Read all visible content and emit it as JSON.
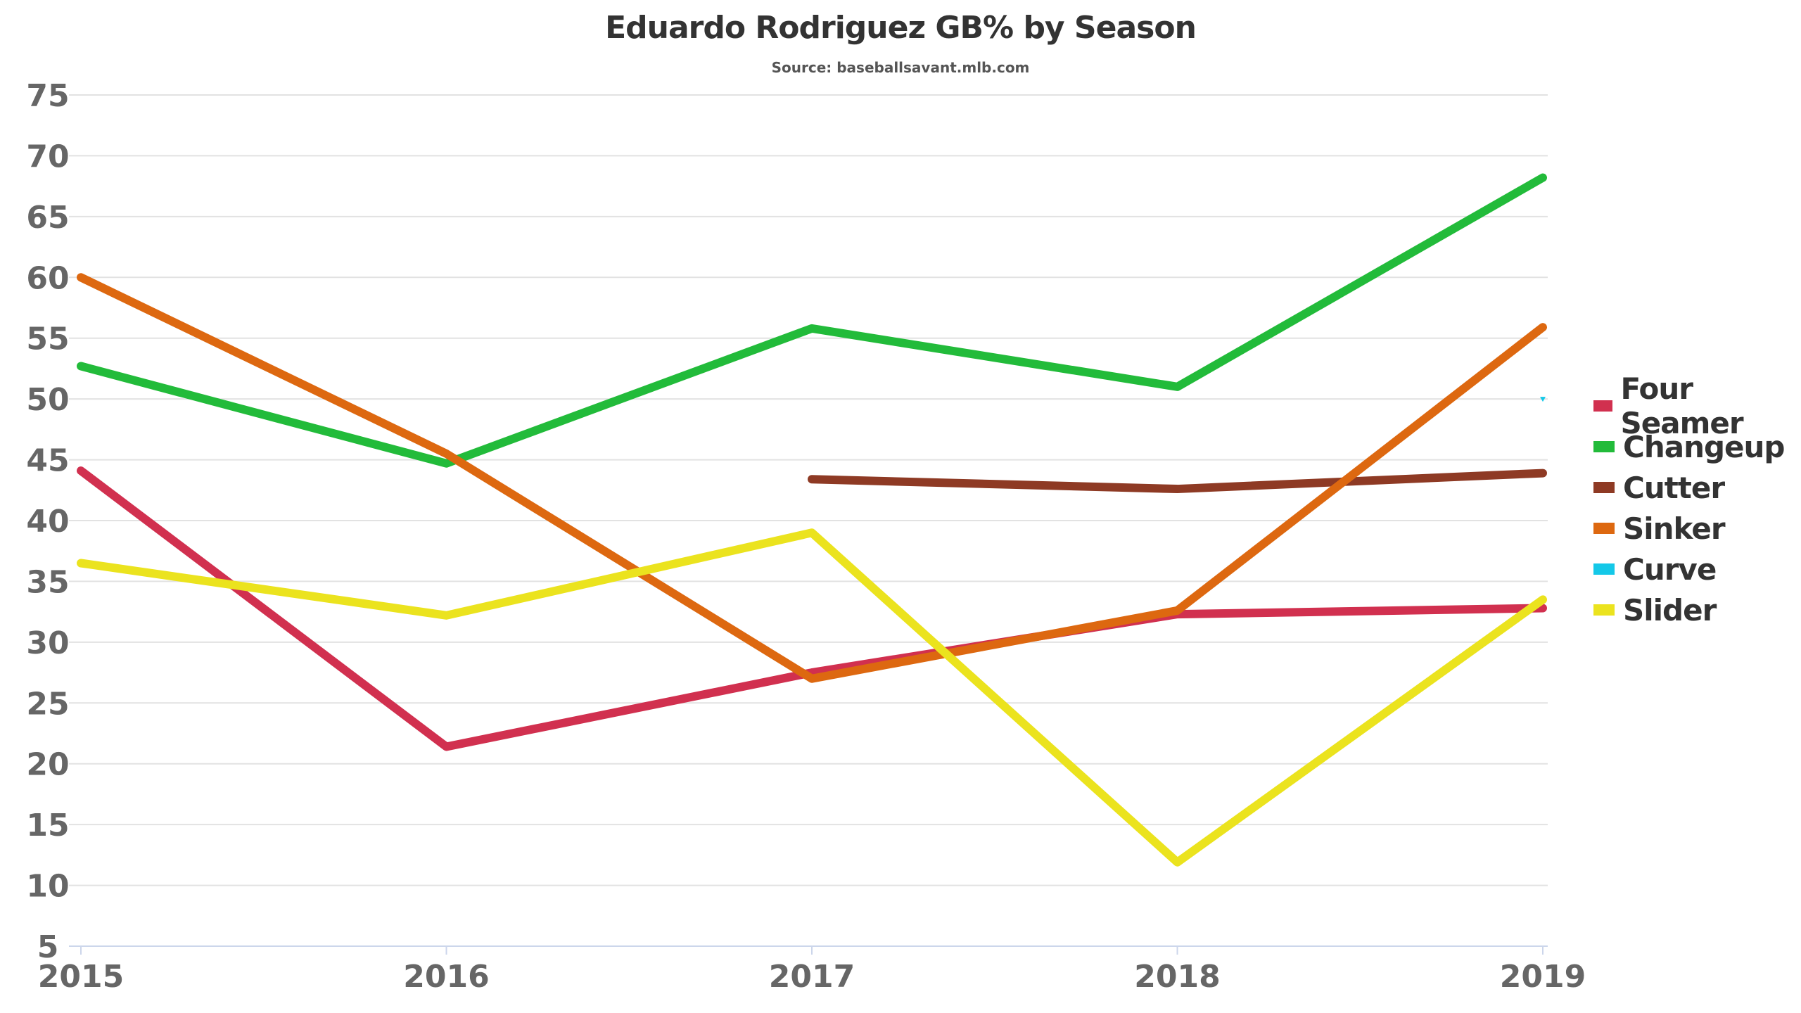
{
  "chart_data": {
    "type": "line",
    "title": "Eduardo Rodriguez GB% by Season",
    "subtitle": "Source: baseballsavant.mlb.com",
    "xlabel": "",
    "ylabel": "",
    "x": [
      "2015",
      "2016",
      "2017",
      "2018",
      "2019"
    ],
    "ylim": [
      5,
      75
    ],
    "yticks": [
      5,
      10,
      15,
      20,
      25,
      30,
      35,
      40,
      45,
      50,
      55,
      60,
      65,
      70,
      75
    ],
    "grid": true,
    "legend_position": "right",
    "series": [
      {
        "name": "Four Seamer",
        "color": "#d1304f",
        "values": [
          44.1,
          21.4,
          27.5,
          32.3,
          32.8
        ]
      },
      {
        "name": "Changeup",
        "color": "#22bb3a",
        "values": [
          52.7,
          44.7,
          55.8,
          51.0,
          68.2
        ]
      },
      {
        "name": "Cutter",
        "color": "#8e3a24",
        "values": [
          null,
          null,
          43.4,
          42.6,
          43.9
        ]
      },
      {
        "name": "Sinker",
        "color": "#dd6810",
        "values": [
          60.0,
          45.5,
          27.0,
          32.6,
          55.9
        ]
      },
      {
        "name": "Curve",
        "color": "#14c8e8",
        "values": [
          null,
          null,
          null,
          null,
          50.0
        ]
      },
      {
        "name": "Slider",
        "color": "#ebe31e",
        "values": [
          36.5,
          32.2,
          39.0,
          11.9,
          33.5
        ]
      }
    ]
  }
}
